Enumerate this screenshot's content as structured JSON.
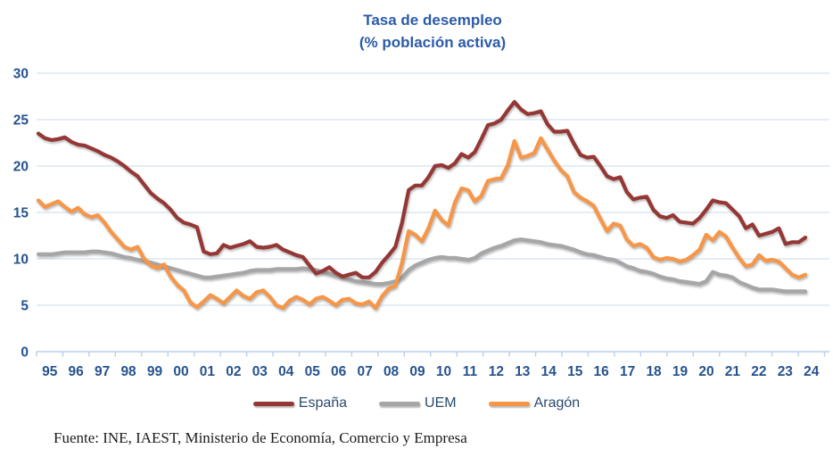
{
  "title": {
    "line1": "Tasa de desempleo",
    "line2": "(% población activa)"
  },
  "source": "Fuente: INE, IAEST, Ministerio de Economía, Comercio y Empresa",
  "colors": {
    "title_blue": "#2b5ba8",
    "axis_label_blue": "#26538e",
    "gridline": "#dce7f4",
    "axis_line": "#b9cfea",
    "legend_text": "#2c4a70",
    "espana": "#953734",
    "uem": "#A6A6A6",
    "aragon": "#F79646"
  },
  "chart_data": {
    "type": "line",
    "title": "Tasa de desempleo (% población activa)",
    "xlabel": "",
    "ylabel": "",
    "ylim": [
      0,
      30
    ],
    "y_ticks": [
      0,
      5,
      10,
      15,
      20,
      25,
      30
    ],
    "grid": "horizontal",
    "legend_position": "bottom",
    "x_unit": "quarterly, 1995Q1 - 2024Q1",
    "x_tick_labels": [
      "95",
      "96",
      "97",
      "98",
      "99",
      "00",
      "01",
      "02",
      "03",
      "04",
      "05",
      "06",
      "07",
      "08",
      "09",
      "10",
      "11",
      "12",
      "13",
      "14",
      "15",
      "16",
      "17",
      "18",
      "19",
      "20",
      "21",
      "22",
      "23",
      "24"
    ],
    "series": [
      {
        "name": "España",
        "color": "#953734",
        "values": [
          23.5,
          23.0,
          22.8,
          22.9,
          23.1,
          22.6,
          22.3,
          22.2,
          21.9,
          21.6,
          21.2,
          20.9,
          20.5,
          20.0,
          19.4,
          18.9,
          18.0,
          17.1,
          16.5,
          16.0,
          15.3,
          14.4,
          13.9,
          13.7,
          13.4,
          10.8,
          10.5,
          10.6,
          11.5,
          11.2,
          11.4,
          11.6,
          11.9,
          11.3,
          11.2,
          11.3,
          11.5,
          11.0,
          10.7,
          10.4,
          10.2,
          9.3,
          8.4,
          8.7,
          9.1,
          8.5,
          8.1,
          8.3,
          8.5,
          8.0,
          8.0,
          8.6,
          9.6,
          10.4,
          11.3,
          13.9,
          17.4,
          17.9,
          17.9,
          18.8,
          20.0,
          20.1,
          19.8,
          20.3,
          21.3,
          20.9,
          21.5,
          22.9,
          24.4,
          24.6,
          25.0,
          26.0,
          26.9,
          26.1,
          25.6,
          25.7,
          25.9,
          24.5,
          23.7,
          23.7,
          23.8,
          22.4,
          21.2,
          20.9,
          21.0,
          20.0,
          18.9,
          18.6,
          18.8,
          17.2,
          16.4,
          16.6,
          16.7,
          15.3,
          14.6,
          14.4,
          14.7,
          14.0,
          13.9,
          13.8,
          14.4,
          15.3,
          16.3,
          16.1,
          16.0,
          15.3,
          14.6,
          13.3,
          13.7,
          12.5,
          12.7,
          12.9,
          13.3,
          11.6,
          11.8,
          11.8,
          12.3
        ]
      },
      {
        "name": "UEM",
        "color": "#A6A6A6",
        "values": [
          10.5,
          10.5,
          10.5,
          10.6,
          10.7,
          10.7,
          10.7,
          10.7,
          10.8,
          10.8,
          10.7,
          10.6,
          10.4,
          10.2,
          10.1,
          9.9,
          9.8,
          9.6,
          9.4,
          9.2,
          9.0,
          8.8,
          8.6,
          8.4,
          8.2,
          8.0,
          8.0,
          8.1,
          8.2,
          8.3,
          8.4,
          8.5,
          8.7,
          8.8,
          8.8,
          8.8,
          8.9,
          8.9,
          8.9,
          8.9,
          9.0,
          8.9,
          8.8,
          8.6,
          8.4,
          8.2,
          8.0,
          7.8,
          7.6,
          7.5,
          7.4,
          7.3,
          7.3,
          7.4,
          7.6,
          8.0,
          8.8,
          9.3,
          9.6,
          9.9,
          10.1,
          10.2,
          10.1,
          10.1,
          10.0,
          9.9,
          10.1,
          10.6,
          10.9,
          11.2,
          11.4,
          11.7,
          12.0,
          12.1,
          12.0,
          11.9,
          11.8,
          11.6,
          11.5,
          11.4,
          11.2,
          11.0,
          10.7,
          10.5,
          10.4,
          10.2,
          10.0,
          9.9,
          9.6,
          9.2,
          9.0,
          8.7,
          8.6,
          8.4,
          8.1,
          7.9,
          7.8,
          7.6,
          7.5,
          7.4,
          7.3,
          7.6,
          8.6,
          8.3,
          8.2,
          8.0,
          7.5,
          7.2,
          6.9,
          6.7,
          6.7,
          6.7,
          6.6,
          6.5,
          6.5,
          6.5,
          6.5
        ]
      },
      {
        "name": "Aragón",
        "color": "#F79646",
        "values": [
          16.3,
          15.6,
          15.9,
          16.2,
          15.6,
          15.1,
          15.5,
          14.8,
          14.5,
          14.7,
          13.9,
          12.9,
          12.1,
          11.3,
          11.0,
          11.3,
          10.0,
          9.3,
          9.0,
          9.4,
          8.1,
          7.2,
          6.6,
          5.3,
          4.8,
          5.4,
          6.1,
          5.7,
          5.2,
          5.9,
          6.6,
          6.0,
          5.7,
          6.4,
          6.6,
          5.9,
          5.0,
          4.7,
          5.5,
          5.9,
          5.6,
          5.1,
          5.7,
          5.9,
          5.5,
          5.0,
          5.6,
          5.7,
          5.2,
          5.1,
          5.4,
          4.7,
          6.0,
          6.8,
          7.1,
          9.6,
          13.0,
          12.6,
          11.9,
          13.3,
          15.2,
          14.2,
          13.6,
          16.1,
          17.6,
          17.4,
          16.2,
          16.8,
          18.4,
          18.6,
          18.7,
          20.1,
          22.7,
          20.9,
          21.1,
          21.4,
          23.0,
          21.8,
          20.6,
          19.6,
          18.9,
          17.2,
          16.6,
          16.2,
          15.7,
          14.3,
          13.0,
          13.8,
          13.6,
          12.1,
          11.4,
          11.6,
          11.2,
          10.2,
          9.9,
          10.1,
          10.0,
          9.7,
          9.9,
          10.4,
          11.0,
          12.6,
          12.0,
          12.9,
          12.4,
          11.2,
          10.1,
          9.2,
          9.4,
          10.4,
          9.8,
          9.9,
          9.7,
          9.0,
          8.3,
          8.0,
          8.3
        ]
      }
    ]
  }
}
